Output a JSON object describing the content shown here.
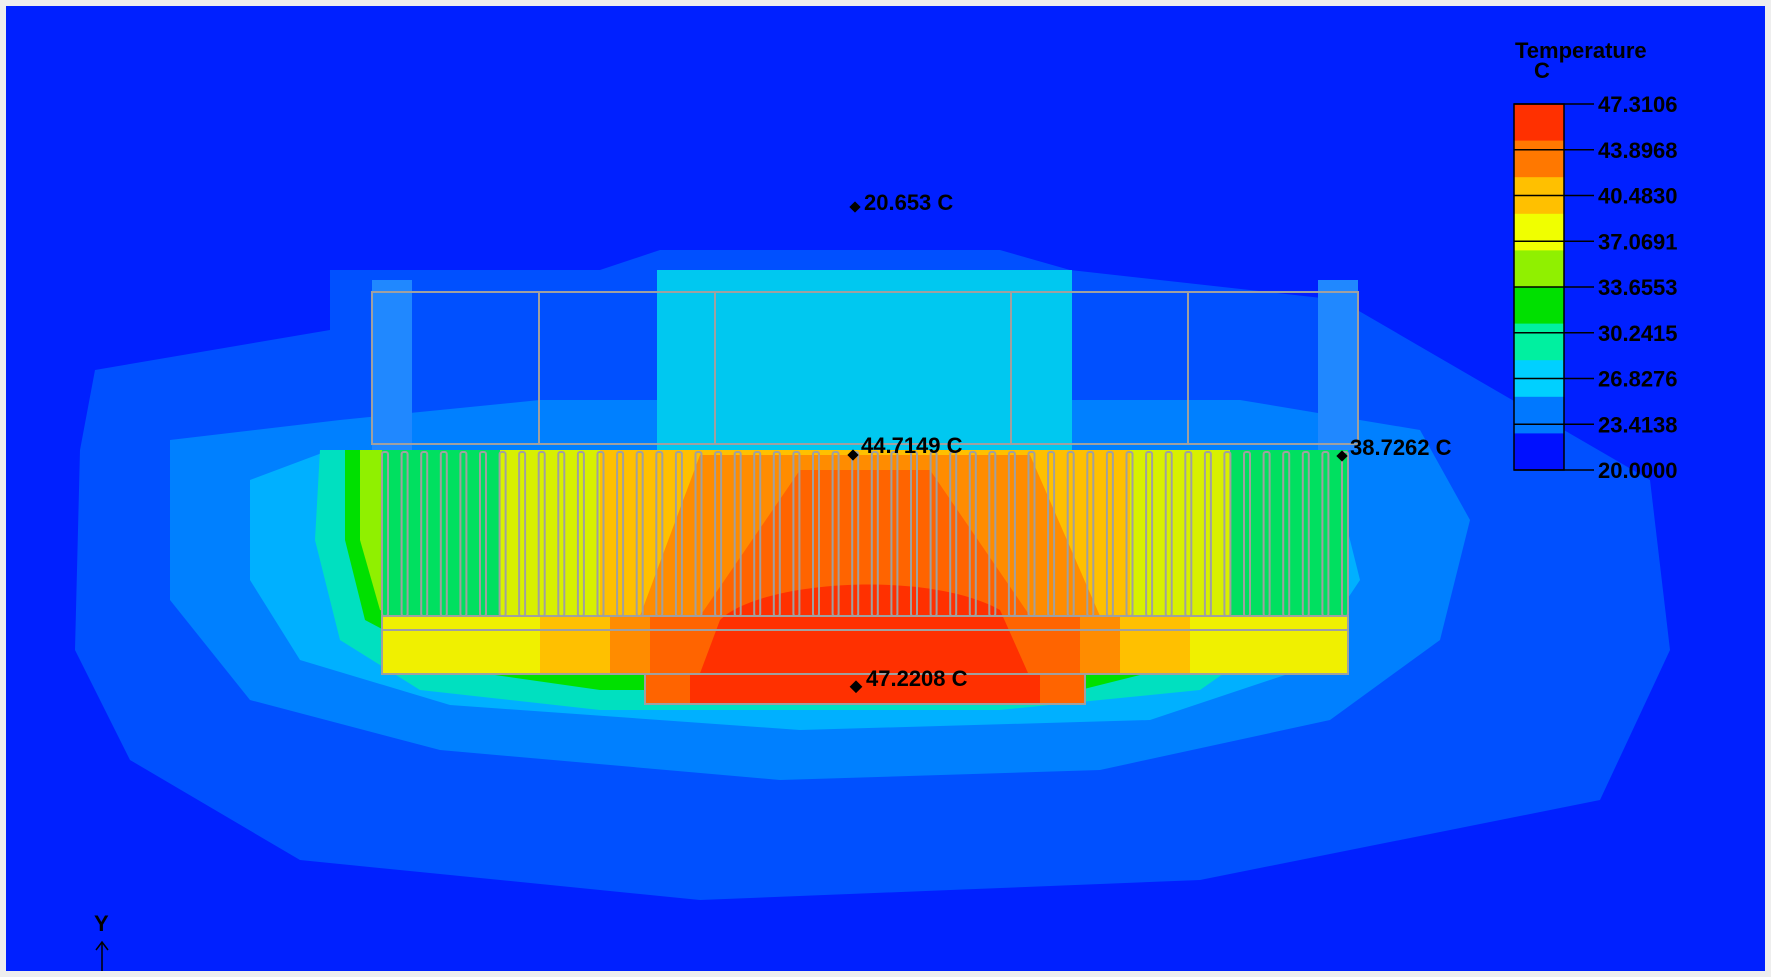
{
  "legend": {
    "title": "Temperature",
    "unit": "C",
    "ticks": [
      "47.3106",
      "43.8968",
      "40.4830",
      "37.0691",
      "33.6553",
      "30.2415",
      "26.8276",
      "23.4138",
      "20.0000"
    ],
    "colors": [
      "#ff3000",
      "#ff7800",
      "#ffc000",
      "#f0ff00",
      "#90f000",
      "#00e000",
      "#00f0a0",
      "#00d0ff",
      "#0078ff",
      "#0010ff"
    ]
  },
  "probes": [
    {
      "label": "20.653 C"
    },
    {
      "label": "44.7149 C"
    },
    {
      "label": "38.7262 C"
    },
    {
      "label": "47.2208 C"
    }
  ],
  "axis": {
    "y_label": "Y"
  },
  "colors": {
    "ambient": "#0020ff",
    "outline": "#a0a0a0",
    "frame": "#e8e8e8"
  }
}
